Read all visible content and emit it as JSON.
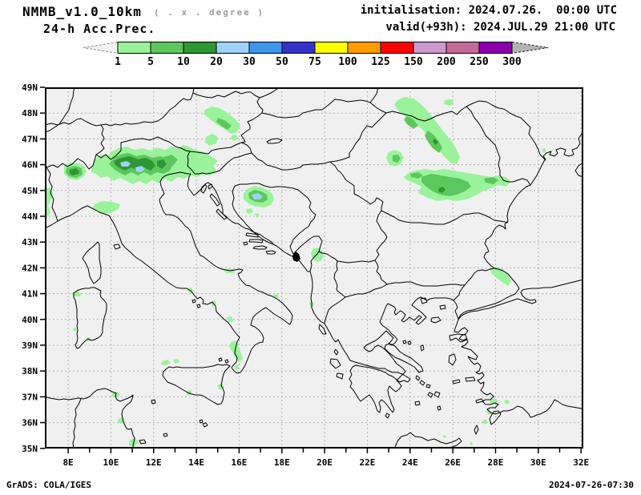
{
  "header": {
    "model_title": "NMMB_v1.0_10km",
    "grid_note": "( . x . degree )",
    "product_title": "24-h Acc.Prec.",
    "init_line": "initialisation: 2024.07.26.  00:00 UTC",
    "valid_line": "valid(+93h): 2024.JUL.29 21:00 UTC"
  },
  "colorbar": {
    "tick_labels": [
      "1",
      "5",
      "10",
      "20",
      "30",
      "50",
      "75",
      "100",
      "125",
      "150",
      "200",
      "250",
      "300"
    ],
    "segment_colors": [
      "#9af39a",
      "#5cc75c",
      "#2e9632",
      "#9fd2f7",
      "#3e97ec",
      "#3333cc",
      "#ffff00",
      "#ff9c00",
      "#fb0404",
      "#cc99cc",
      "#c46a97",
      "#8d00b0"
    ],
    "under_arrow_color": "#f2f2f2",
    "over_arrow_color": "#b3b3b3"
  },
  "map": {
    "background_color": "#f0f0f0",
    "grid_color": "#b0b0b0",
    "lat_labels": [
      "49N",
      "48N",
      "47N",
      "46N",
      "45N",
      "44N",
      "43N",
      "42N",
      "41N",
      "40N",
      "39N",
      "38N",
      "37N",
      "36N",
      "35N"
    ],
    "lon_labels": [
      "8E",
      "10E",
      "12E",
      "14E",
      "16E",
      "18E",
      "20E",
      "22E",
      "24E",
      "26E",
      "28E",
      "30E",
      "32E"
    ],
    "shading_levels": {
      "light_green": "#9af39a",
      "medium_green": "#5cc75c",
      "dark_green": "#2e9632",
      "light_blue": "#9fd2f7"
    }
  },
  "footer": {
    "left": "GrADS: COLA/IGES",
    "right": "2024-07-26-07:30"
  }
}
